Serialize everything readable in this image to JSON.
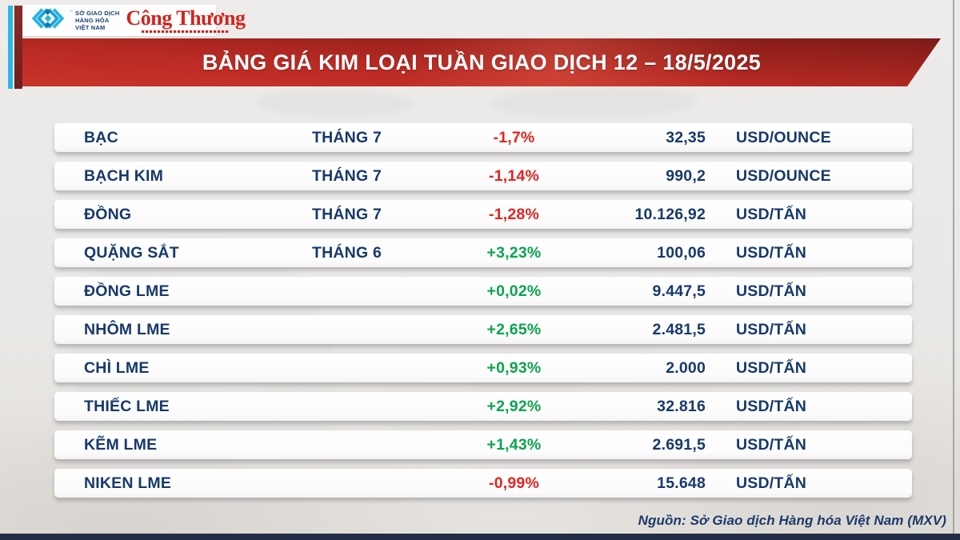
{
  "header": {
    "mxv_logo": {
      "trademark": "™",
      "line1": "SỞ GIAO DỊCH",
      "line2": "HÀNG HÓA",
      "line3": "VIỆT NAM"
    },
    "congthuong_logo": "Công Thương",
    "title": "BẢNG GIÁ KIM LOẠI TUẦN GIAO DỊCH 12 – 18/5/2025"
  },
  "chart_data": {
    "type": "table",
    "title": "BẢNG GIÁ KIM LOẠI TUẦN GIAO DỊCH 12 – 18/5/2025",
    "rows": [
      {
        "name": "BẠC",
        "month": "THÁNG 7",
        "change": "-1,7%",
        "price": "32,35",
        "unit": "USD/OUNCE"
      },
      {
        "name": "BẠCH KIM",
        "month": "THÁNG 7",
        "change": "-1,14%",
        "price": "990,2",
        "unit": "USD/OUNCE"
      },
      {
        "name": "ĐỒNG",
        "month": "THÁNG 7",
        "change": "-1,28%",
        "price": "10.126,92",
        "unit": "USD/TẤN"
      },
      {
        "name": "QUẶNG SẮT",
        "month": "THÁNG 6",
        "change": "+3,23%",
        "price": "100,06",
        "unit": "USD/TẤN"
      },
      {
        "name": "ĐỒNG LME",
        "month": "",
        "change": "+0,02%",
        "price": "9.447,5",
        "unit": "USD/TẤN"
      },
      {
        "name": "NHÔM LME",
        "month": "",
        "change": "+2,65%",
        "price": "2.481,5",
        "unit": "USD/TẤN"
      },
      {
        "name": "CHÌ LME",
        "month": "",
        "change": "+0,93%",
        "price": "2.000",
        "unit": "USD/TẤN"
      },
      {
        "name": "THIẾC LME",
        "month": "",
        "change": "+2,92%",
        "price": "32.816",
        "unit": "USD/TẤN"
      },
      {
        "name": "KẼM LME",
        "month": "",
        "change": "+1,43%",
        "price": "2.691,5",
        "unit": "USD/TẤN"
      },
      {
        "name": "NIKEN LME",
        "month": "",
        "change": "-0,99%",
        "price": "15.648",
        "unit": "USD/TẤN"
      }
    ]
  },
  "footer": {
    "source": "Nguồn: Sở Giao dịch Hàng hóa Việt Nam (MXV)"
  },
  "colors": {
    "up": "#0ca44d",
    "down": "#e32422",
    "navy_text": "#17396b",
    "banner_red": "#b72a23",
    "accent_cyan": "#2bb8e7",
    "accent_brick": "#7a2822",
    "bottom_bar": "#232e46"
  }
}
